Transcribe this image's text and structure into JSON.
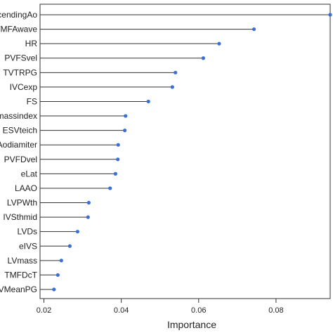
{
  "chart_data": {
    "type": "dot",
    "xlabel": "Importance",
    "xticks": [
      0.02,
      0.04,
      0.06,
      0.08
    ],
    "xlim": [
      0.019,
      0.094
    ],
    "grid": false,
    "point_color": "#3a6fd8",
    "line_color": "#333333",
    "categories": [
      "cendingAo",
      "TMFAwave",
      "HR",
      "PVFSvel",
      "TVTRPG",
      "IVCexp",
      "FS",
      "massindex",
      "ESVteich",
      "Aodiamiter",
      "PVFDvel",
      "eLat",
      "LAAO",
      "LVPWth",
      "IVSthmid",
      "LVDs",
      "eIVS",
      "LVmass",
      "TMFDcT",
      "VMeanPG"
    ],
    "values": [
      0.094,
      0.0743,
      0.0653,
      0.0612,
      0.054,
      0.0532,
      0.047,
      0.0411,
      0.0409,
      0.0392,
      0.0391,
      0.0385,
      0.0371,
      0.0316,
      0.0314,
      0.0287,
      0.0267,
      0.0245,
      0.0236,
      0.0226
    ]
  }
}
